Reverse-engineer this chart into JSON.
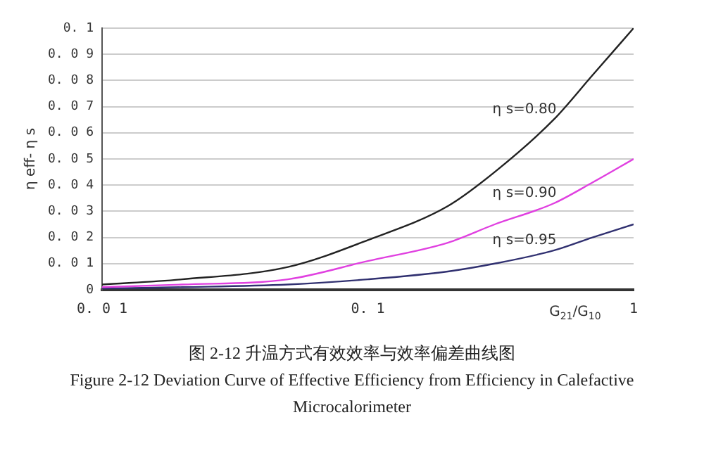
{
  "chart_data": {
    "type": "line",
    "title": "图 2-12 升温方式有效效率与效率偏差曲线图",
    "subtitle": "Figure 2-12 Deviation Curve of Effective Efficiency from Efficiency in Calefactive Microcalorimeter",
    "xlabel": "G$_{21}$/G$_{10}$",
    "ylabel": "η eff- η s",
    "x": [
      0.01,
      0.02,
      0.05,
      0.1,
      0.2,
      0.3,
      0.5,
      0.7,
      1
    ],
    "series": [
      {
        "name": "η s=0.80",
        "color": "#222222",
        "values": [
          0.002,
          0.004,
          0.0087,
          0.019,
          0.032,
          0.045,
          0.065,
          0.082,
          0.1
        ]
      },
      {
        "name": "η s=0.90",
        "color": "#e040e0",
        "values": [
          0.001,
          0.002,
          0.004,
          0.011,
          0.018,
          0.025,
          0.033,
          0.041,
          0.05
        ]
      },
      {
        "name": "η s=0.95",
        "color": "#303070",
        "values": [
          0.0005,
          0.001,
          0.002,
          0.004,
          0.007,
          0.01,
          0.015,
          0.02,
          0.025
        ]
      }
    ],
    "log": "x",
    "xlim": [
      0.01,
      1
    ],
    "xticks": [
      0.01,
      0.1,
      1
    ],
    "ylim": [
      0,
      0.1
    ],
    "yticks": [
      0,
      0.01,
      0.02,
      0.03,
      0.04,
      0.05,
      0.06,
      0.07,
      0.08,
      0.09,
      0.1
    ],
    "grid": "y",
    "legend": false,
    "marker": "none",
    "line_style": "solid"
  }
}
